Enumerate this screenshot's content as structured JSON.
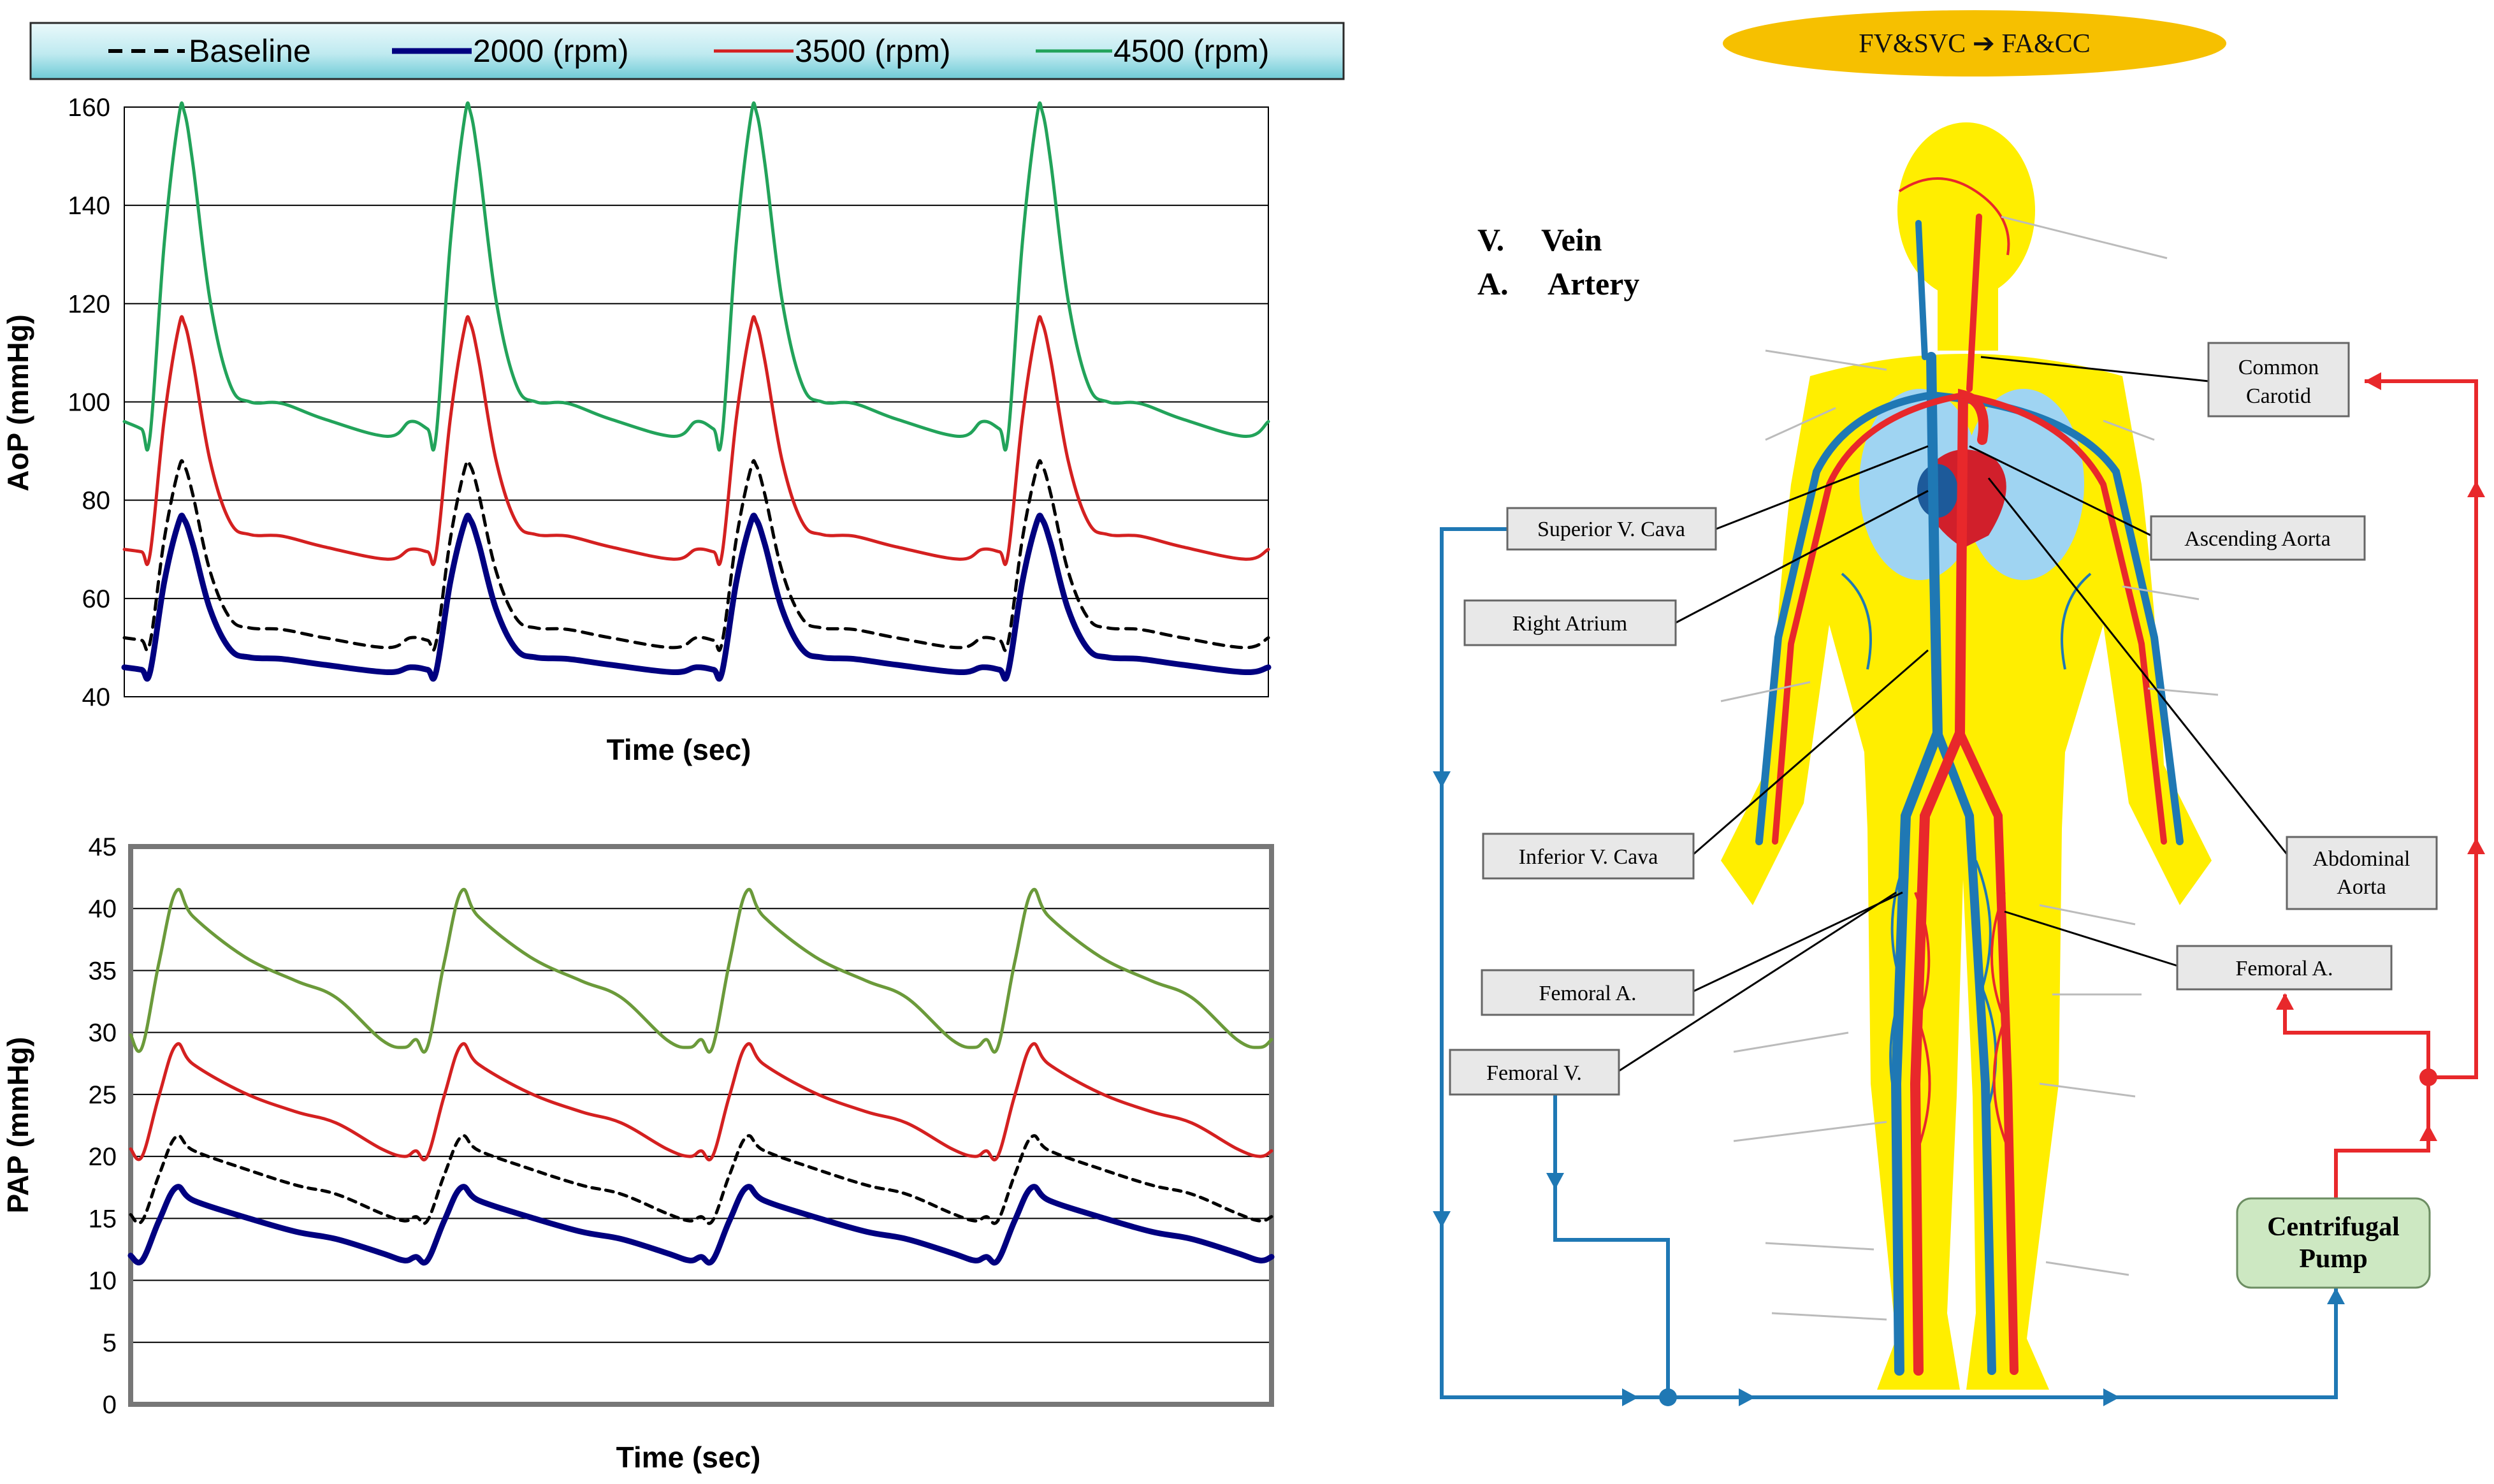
{
  "legend": {
    "items": [
      {
        "label": "Baseline",
        "color": "#000000",
        "style": "dashed"
      },
      {
        "label": "2000 (rpm)",
        "color": "#000080",
        "style": "solid"
      },
      {
        "label": "3500 (rpm)",
        "color": "#d42020",
        "style": "solid"
      },
      {
        "label": "4500 (rpm)",
        "color": "#22a35a",
        "style": "solid"
      }
    ]
  },
  "chart_data": [
    {
      "type": "line",
      "title": "",
      "xlabel": "Time (sec)",
      "ylabel": "AoP (mmHg)",
      "ylim": [
        40,
        160
      ],
      "yticks": [
        40,
        60,
        80,
        100,
        120,
        140,
        160
      ],
      "grid": true,
      "cycles": 4,
      "x": [
        0,
        0.25,
        0.5,
        0.65,
        0.8,
        1,
        1.25,
        1.5,
        1.7,
        2,
        2.3,
        2.5,
        2.75,
        3,
        3.3,
        3.5,
        3.75,
        4
      ],
      "series": [
        {
          "name": "Baseline",
          "cycle_profile": {
            "start": 52,
            "trough": 51,
            "peak": 87,
            "notch": 54,
            "end": 50
          }
        },
        {
          "name": "2000 (rpm)",
          "cycle_profile": {
            "start": 46,
            "trough": 45,
            "peak": 76,
            "notch": 48,
            "end": 45
          }
        },
        {
          "name": "3500 (rpm)",
          "cycle_profile": {
            "start": 70,
            "trough": 69,
            "peak": 116,
            "notch": 73,
            "end": 68
          }
        },
        {
          "name": "4500 (rpm)",
          "cycle_profile": {
            "start": 96,
            "trough": 93,
            "peak": 159,
            "notch": 100,
            "end": 93
          }
        }
      ]
    },
    {
      "type": "line",
      "title": "",
      "xlabel": "Time (sec)",
      "ylabel": "PAP (mmHg)",
      "ylim": [
        0,
        45
      ],
      "yticks": [
        0,
        5,
        10,
        15,
        20,
        25,
        30,
        35,
        40,
        45
      ],
      "grid": true,
      "cycles": 4,
      "series": [
        {
          "name": "Baseline",
          "color": "#000000",
          "cycle_profile": {
            "start": 15.3,
            "trough": 14.8,
            "peak": 21.6,
            "mid": 18.4,
            "end": 14.8
          }
        },
        {
          "name": "2000 (rpm)",
          "color": "#000080",
          "cycle_profile": {
            "start": 12.0,
            "trough": 11.6,
            "peak": 17.5,
            "mid": 14.5,
            "end": 11.6
          }
        },
        {
          "name": "3500 (rpm)",
          "color": "#d42020",
          "cycle_profile": {
            "start": 20.6,
            "trough": 20.0,
            "peak": 29.0,
            "mid": 24.5,
            "end": 20.0
          }
        },
        {
          "name": "4500 (rpm)",
          "color": "#6b9a3a",
          "cycle_profile": {
            "start": 29.8,
            "trough": 28.8,
            "peak": 41.4,
            "mid": 35.5,
            "end": 28.8
          }
        }
      ]
    }
  ],
  "diagram": {
    "title": "FV&SVC ➔ FA&CC",
    "key": [
      {
        "letter": "V.",
        "meaning": "Vein"
      },
      {
        "letter": "A.",
        "meaning": "Artery"
      }
    ],
    "labels": {
      "common_carotid": [
        "Common",
        "Carotid"
      ],
      "superior_vena_cava": "Superior V. Cava",
      "ascending_aorta": "Ascending Aorta",
      "right_atrium": "Right Atrium",
      "inferior_vena_cava": "Inferior V. Cava",
      "abdominal_aorta": [
        "Abdominal",
        "Aorta"
      ],
      "femoral_a_left": "Femoral A.",
      "femoral_a_right": "Femoral A.",
      "femoral_v": "Femoral V.",
      "pump": [
        "Centrifugal",
        "Pump"
      ]
    },
    "colors": {
      "vein": "#1f78b4",
      "artery": "#e8282b",
      "body": "#ffee00",
      "title_bg": "#f6c000",
      "pump_bg": "#cde8c2"
    }
  }
}
